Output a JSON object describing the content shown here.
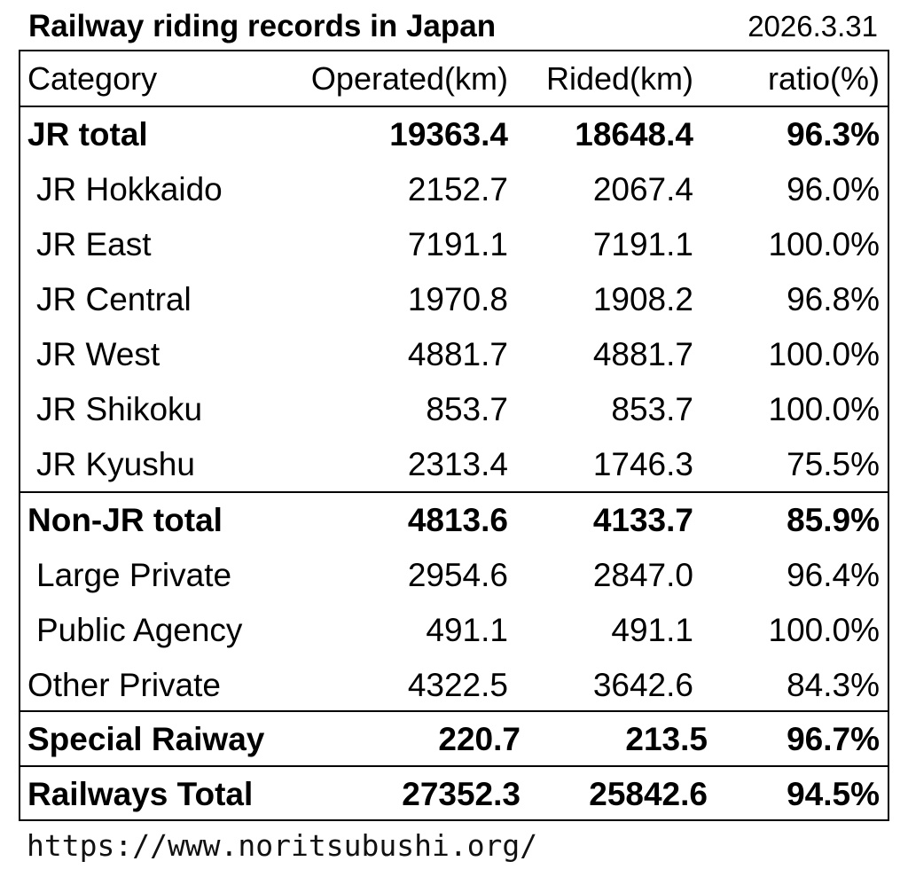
{
  "title": "Railway riding records in Japan",
  "date": "2026.3.31",
  "table": {
    "headers": {
      "category": "Category",
      "operated": "Operated(km)",
      "rided": "Rided(km)",
      "ratio": "ratio(%)"
    },
    "rows": [
      {
        "category": "JR total",
        "operated": "19363.4",
        "rided": "18648.4",
        "ratio": "96.3%"
      },
      {
        "category": "JR Hokkaido",
        "operated": "2152.7",
        "rided": "2067.4",
        "ratio": "96.0%"
      },
      {
        "category": "JR East",
        "operated": "7191.1",
        "rided": "7191.1",
        "ratio": "100.0%"
      },
      {
        "category": "JR Central",
        "operated": "1970.8",
        "rided": "1908.2",
        "ratio": "96.8%"
      },
      {
        "category": "JR West",
        "operated": "4881.7",
        "rided": "4881.7",
        "ratio": "100.0%"
      },
      {
        "category": "JR Shikoku",
        "operated": "853.7",
        "rided": "853.7",
        "ratio": "100.0%"
      },
      {
        "category": "JR Kyushu",
        "operated": "2313.4",
        "rided": "1746.3",
        "ratio": "75.5%"
      },
      {
        "category": "Non-JR total",
        "operated": "4813.6",
        "rided": "4133.7",
        "ratio": "85.9%"
      },
      {
        "category": "Large Private",
        "operated": "2954.6",
        "rided": "2847.0",
        "ratio": "96.4%"
      },
      {
        "category": "Public Agency",
        "operated": "491.1",
        "rided": "491.1",
        "ratio": "100.0%"
      },
      {
        "category": "Other Private",
        "operated": "4322.5",
        "rided": "3642.6",
        "ratio": "84.3%"
      },
      {
        "category": "Special Raiway",
        "operated": "220.7",
        "rided": "213.5",
        "ratio": "96.7%"
      },
      {
        "category": "Railways Total",
        "operated": "27352.3",
        "rided": "25842.6",
        "ratio": "94.5%"
      }
    ]
  },
  "footer": {
    "url": "https://www.noritsubushi.org/"
  }
}
